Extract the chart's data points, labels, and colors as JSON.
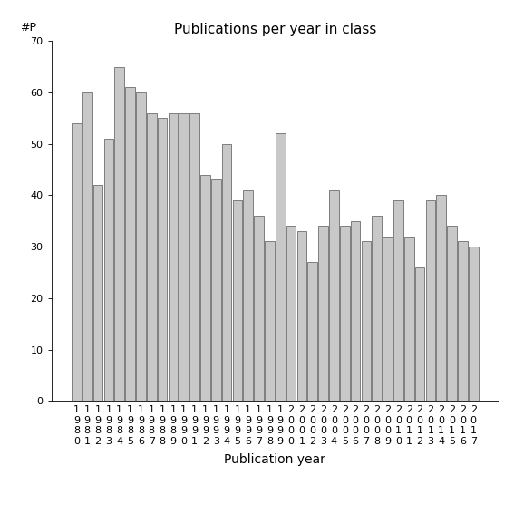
{
  "title": "Publications per year in class",
  "xlabel": "Publication year",
  "ylabel": "#P",
  "bar_color": "#c8c8c8",
  "bar_edge_color": "#555555",
  "background_color": "#ffffff",
  "ylim": [
    0,
    70
  ],
  "yticks": [
    0,
    10,
    20,
    30,
    40,
    50,
    60,
    70
  ],
  "years": [
    1980,
    1981,
    1982,
    1983,
    1984,
    1985,
    1986,
    1987,
    1988,
    1989,
    1990,
    1991,
    1992,
    1993,
    1994,
    1995,
    1996,
    1997,
    1998,
    1999,
    2000,
    2001,
    2002,
    2003,
    2004,
    2005,
    2006,
    2007,
    2008,
    2009,
    2010,
    2011,
    2012,
    2013,
    2014,
    2015,
    2016,
    2017
  ],
  "values": [
    54,
    60,
    42,
    51,
    65,
    61,
    60,
    56,
    55,
    56,
    56,
    56,
    44,
    43,
    50,
    39,
    41,
    36,
    31,
    52,
    34,
    33,
    27,
    34,
    41,
    34,
    35,
    31,
    36,
    32,
    39,
    32,
    26,
    39,
    40,
    34,
    31,
    30
  ],
  "title_fontsize": 11,
  "axis_label_fontsize": 10,
  "tick_fontsize": 8
}
